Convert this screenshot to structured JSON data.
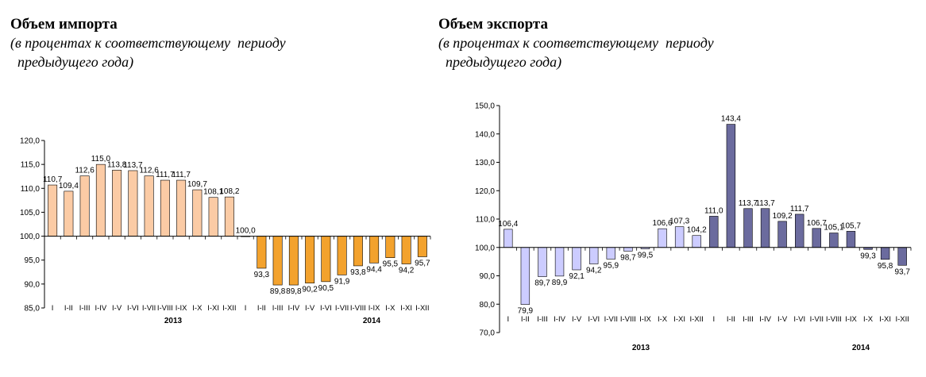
{
  "import_panel": {
    "title": "Объем импорта",
    "subtitle_line1": "(в процентах к соответствующему  периоду",
    "subtitle_line2": "  предыдущего года)"
  },
  "export_panel": {
    "title": "Объем экспорта",
    "subtitle_line1": "(в процентах к соответствующему  периоду",
    "subtitle_line2": "  предыдущего года)"
  },
  "chart_data": [
    {
      "type": "bar",
      "id": "import",
      "title": "Объем импорта",
      "baseline": 100.0,
      "ylim": [
        85.0,
        120.0
      ],
      "ytick_step": 5.0,
      "categories": [
        "I",
        "I-II",
        "I-III",
        "I-IV",
        "I-V",
        "I-VI",
        "I-VII",
        "I-VIII",
        "I-IX",
        "I-X",
        "I-XI",
        "I-XII",
        "I",
        "I-II",
        "I-III",
        "I-IV",
        "I-V",
        "I-VI",
        "I-VII",
        "I-VIII",
        "I-IX",
        "I-X",
        "I-XI",
        "I-XII"
      ],
      "values": [
        110.7,
        109.4,
        112.6,
        115.0,
        113.8,
        113.7,
        112.6,
        111.7,
        111.7,
        109.7,
        108.1,
        108.2,
        100.0,
        93.3,
        89.8,
        89.8,
        90.2,
        90.5,
        91.9,
        93.8,
        94.4,
        95.5,
        94.2,
        95.7
      ],
      "labels": [
        "110,7",
        "109,4",
        "112,6",
        "115,0",
        "113,8",
        "113,7",
        "112,6",
        "111,7",
        "111,7",
        "109,7",
        "108,1",
        "108,2",
        "100,0",
        "93,3",
        "89,8",
        "89,8",
        "90,2",
        "90,5",
        "91,9",
        "93,8",
        "94,4",
        "95,5",
        "94,2",
        "95,7"
      ],
      "years": [
        "2013",
        "2014"
      ],
      "colors": {
        "year1": "#fbcba5",
        "year2": "#f3a22d",
        "stroke": "#000000"
      }
    },
    {
      "type": "bar",
      "id": "export",
      "title": "Объем экспорта",
      "baseline": 100.0,
      "ylim": [
        70.0,
        150.0
      ],
      "ytick_step": 10.0,
      "categories": [
        "I",
        "I-II",
        "I-III",
        "I-IV",
        "I-V",
        "I-VI",
        "I-VII",
        "I-VIII",
        "I-IX",
        "I-X",
        "I-XI",
        "I-XII",
        "I",
        "I-II",
        "I-III",
        "I-IV",
        "I-V",
        "I-VI",
        "I-VII",
        "I-VIII",
        "I-IX",
        "I-X",
        "I-XI",
        "I-XII"
      ],
      "values": [
        106.4,
        79.9,
        89.7,
        89.9,
        92.1,
        94.2,
        95.9,
        98.7,
        99.5,
        106.6,
        107.3,
        104.2,
        111.0,
        143.4,
        113.7,
        113.7,
        109.2,
        111.7,
        106.7,
        105.1,
        105.7,
        99.3,
        95.8,
        93.7
      ],
      "labels": [
        "106,4",
        "79,9",
        "89,7",
        "89,9",
        "92,1",
        "94,2",
        "95,9",
        "98,7",
        "99,5",
        "106,6",
        "107,3",
        "104,2",
        "111,0",
        "143,4",
        "113,7",
        "113,7",
        "109,2",
        "111,7",
        "106,7",
        "105,1",
        "105,7",
        "99,3",
        "95,8",
        "93,7"
      ],
      "years": [
        "2013",
        "2014"
      ],
      "colors": {
        "year1": "#ccccff",
        "year2": "#6b6b9e",
        "stroke": "#000000"
      }
    }
  ]
}
